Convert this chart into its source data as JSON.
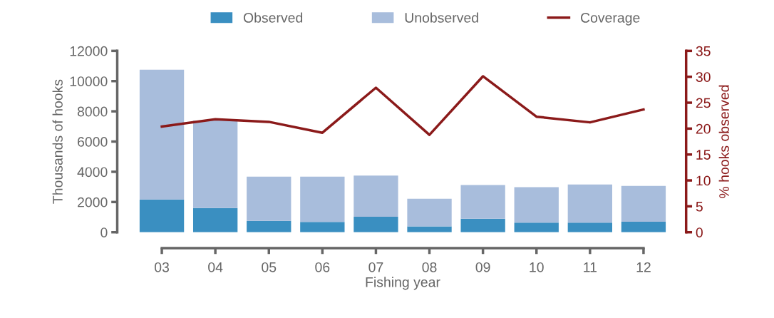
{
  "chart_data": {
    "type": "bar",
    "stacked": true,
    "xlabel": "Fishing year",
    "ylabel": "Thousands of hooks",
    "y2label": "% hooks observed",
    "categories": [
      "03",
      "04",
      "05",
      "06",
      "07",
      "08",
      "09",
      "10",
      "11",
      "12"
    ],
    "series": [
      {
        "name": "Observed",
        "color": "#3a8fc1",
        "values": [
          2170,
          1600,
          750,
          680,
          1020,
          390,
          900,
          630,
          630,
          700
        ]
      },
      {
        "name": "Unobserved",
        "color": "#a8bddc",
        "values": [
          8590,
          5790,
          2930,
          3000,
          2730,
          1830,
          2220,
          2350,
          2530,
          2370
        ]
      },
      {
        "name": "Coverage",
        "type": "line",
        "axis": "y2",
        "color": "#8b1a1a",
        "values": [
          20.4,
          21.8,
          21.3,
          19.2,
          27.9,
          18.8,
          30.1,
          22.3,
          21.2,
          23.7
        ]
      }
    ],
    "ylim": [
      0,
      12000
    ],
    "yticks": [
      0,
      2000,
      4000,
      6000,
      8000,
      10000,
      12000
    ],
    "y2lim": [
      0,
      35
    ],
    "y2ticks": [
      0,
      5,
      10,
      15,
      20,
      25,
      30,
      35
    ],
    "legend": "top",
    "grid": false,
    "marker": "none",
    "line_style": "solid"
  }
}
